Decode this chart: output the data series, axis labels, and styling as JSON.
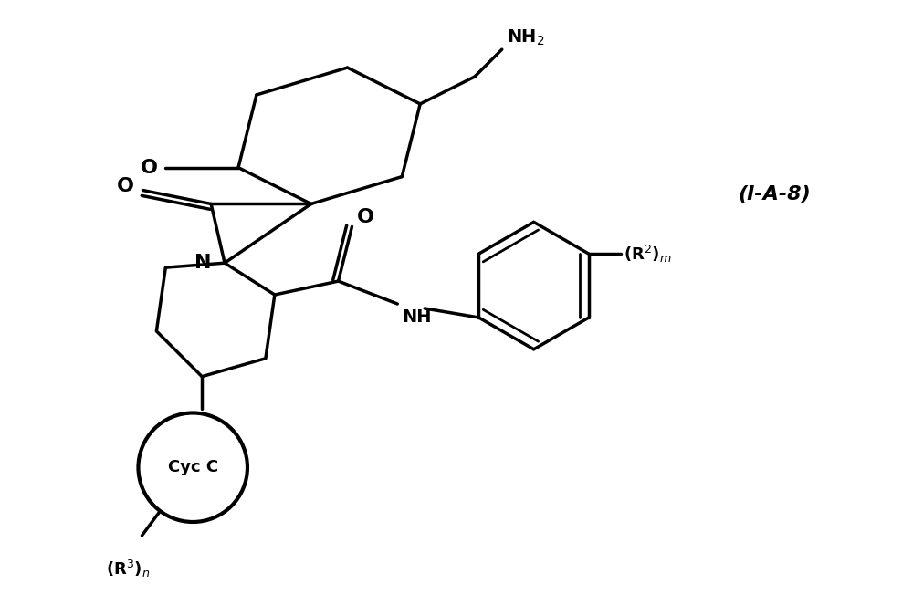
{
  "background_color": "#ffffff",
  "line_color": "#000000",
  "line_width": 2.5,
  "fig_width": 10.0,
  "fig_height": 6.63,
  "label_IA8": "(I-A-8)",
  "label_NH2": "NH$_2$",
  "label_O1": "O",
  "label_O2": "O",
  "label_N": "N",
  "label_NH": "NH",
  "label_R2m": "(R$^2$)$_m$",
  "label_R3n": "(R$^3$)$_n$",
  "label_CycC": "Cyc C"
}
